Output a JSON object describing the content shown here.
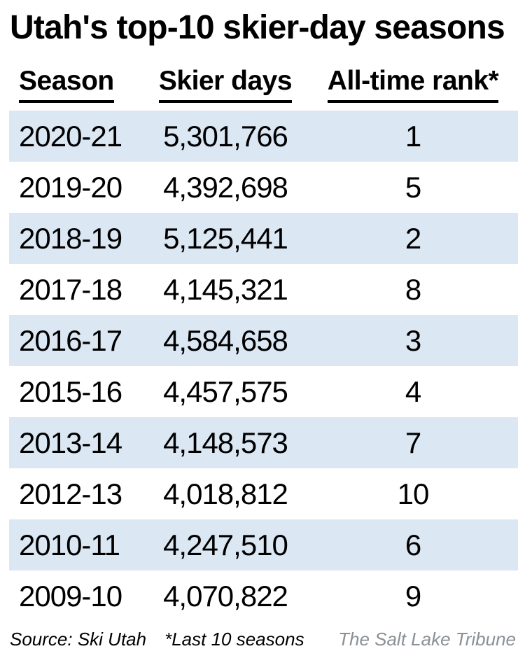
{
  "title": "Utah's top-10 skier-day seasons",
  "table": {
    "columns": {
      "season": "Season",
      "skier_days": "Skier days",
      "rank": "All-time rank*"
    },
    "rows": [
      {
        "season": "2020-21",
        "skier_days": "5,301,766",
        "rank": "1"
      },
      {
        "season": "2019-20",
        "skier_days": "4,392,698",
        "rank": "5"
      },
      {
        "season": "2018-19",
        "skier_days": "5,125,441",
        "rank": "2"
      },
      {
        "season": "2017-18",
        "skier_days": "4,145,321",
        "rank": "8"
      },
      {
        "season": "2016-17",
        "skier_days": "4,584,658",
        "rank": "3"
      },
      {
        "season": "2015-16",
        "skier_days": "4,457,575",
        "rank": "4"
      },
      {
        "season": "2013-14",
        "skier_days": "4,148,573",
        "rank": "7"
      },
      {
        "season": "2012-13",
        "skier_days": "4,018,812",
        "rank": "10"
      },
      {
        "season": "2010-11",
        "skier_days": "4,247,510",
        "rank": "6"
      },
      {
        "season": "2009-10",
        "skier_days": "4,070,822",
        "rank": "9"
      }
    ]
  },
  "footer": {
    "source": "Source: Ski Utah",
    "note": "*Last 10 seasons",
    "credit": "The Salt Lake Tribune"
  },
  "colors": {
    "stripe": "#dbe7f3",
    "text": "#000000",
    "credit_gray": "#8a9095"
  },
  "chart_data": {
    "type": "table",
    "title": "Utah's top-10 skier-day seasons",
    "columns": [
      "Season",
      "Skier days",
      "All-time rank*"
    ],
    "rows": [
      [
        "2020-21",
        5301766,
        1
      ],
      [
        "2019-20",
        4392698,
        5
      ],
      [
        "2018-19",
        5125441,
        2
      ],
      [
        "2017-18",
        4145321,
        8
      ],
      [
        "2016-17",
        4584658,
        3
      ],
      [
        "2015-16",
        4457575,
        4
      ],
      [
        "2013-14",
        4148573,
        7
      ],
      [
        "2012-13",
        4018812,
        10
      ],
      [
        "2010-11",
        4247510,
        6
      ],
      [
        "2009-10",
        4070822,
        9
      ]
    ],
    "source": "Ski Utah",
    "note": "*Last 10 seasons",
    "credit": "The Salt Lake Tribune",
    "layout": {
      "striped_rows": "odd",
      "grid": "off",
      "header_underline": true
    }
  }
}
